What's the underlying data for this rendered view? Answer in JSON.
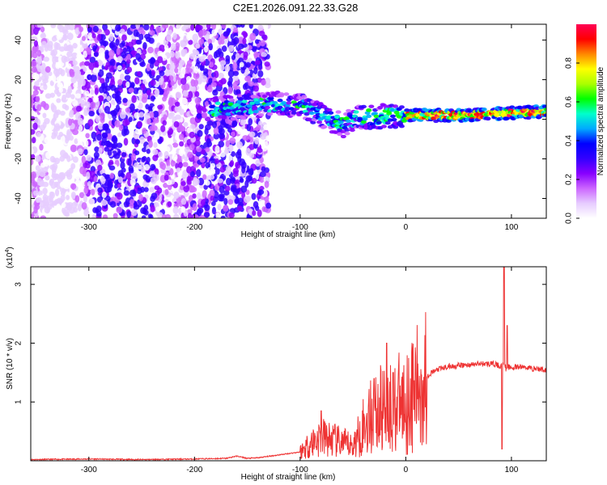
{
  "chart_data": [
    {
      "type": "heatmap",
      "title": "C2E1.2026.091.22.33.G28",
      "xlabel": "Height of straight line (km)",
      "ylabel": "Frequency (Hz)",
      "xlim": [
        -355,
        133
      ],
      "ylim": [
        -50,
        48
      ],
      "xticks": [
        -300,
        -200,
        -100,
        0,
        100
      ],
      "yticks": [
        -40,
        -20,
        0,
        20,
        40
      ],
      "colorbar": {
        "label": "Normalized spectral amplitude",
        "range": [
          0,
          1
        ],
        "ticks": [
          "0.0",
          "0.2",
          "0.4",
          "0.6",
          "0.8"
        ],
        "colors": [
          "#ffffff",
          "#e6ccff",
          "#cc66ff",
          "#8800ff",
          "#3300ff",
          "#0000ff",
          "#00aaff",
          "#00ffcc",
          "#00ff00",
          "#aaff00",
          "#ffff00",
          "#ff8800",
          "#ff0000",
          "#ff0055"
        ]
      },
      "ridge": [
        {
          "x": -180,
          "y": 5
        },
        {
          "x": -160,
          "y": 6
        },
        {
          "x": -140,
          "y": 7
        },
        {
          "x": -120,
          "y": 8
        },
        {
          "x": -100,
          "y": 7
        },
        {
          "x": -80,
          "y": 2
        },
        {
          "x": -60,
          "y": -3
        },
        {
          "x": -45,
          "y": 1
        },
        {
          "x": -30,
          "y": 1
        },
        {
          "x": -15,
          "y": 2
        },
        {
          "x": 0,
          "y": 2
        },
        {
          "x": 30,
          "y": 2
        },
        {
          "x": 60,
          "y": 2
        },
        {
          "x": 90,
          "y": 3
        },
        {
          "x": 133,
          "y": 4
        }
      ]
    },
    {
      "type": "line",
      "xlabel": "Height of straight line (km)",
      "ylabel": "SNR (10 * v/v)",
      "yexponent": "(x10",
      "yexponent_power": "4",
      "yexponent_close": ")",
      "xlim": [
        -355,
        133
      ],
      "ylim": [
        0,
        3.3
      ],
      "xticks": [
        -300,
        -200,
        -100,
        0,
        100
      ],
      "yticks": [
        1,
        2,
        3
      ],
      "series": [
        {
          "name": "SNR",
          "color": "#ee3333",
          "x": [
            -355,
            -300,
            -250,
            -200,
            -170,
            -160,
            -150,
            -140,
            -120,
            -100,
            -90,
            -80,
            -70,
            -60,
            -50,
            -40,
            -30,
            -20,
            -10,
            0,
            10,
            20,
            30,
            40,
            50,
            60,
            70,
            80,
            85,
            90,
            93,
            95,
            97,
            100,
            110,
            120,
            133
          ],
          "y": [
            0.02,
            0.03,
            0.02,
            0.03,
            0.04,
            0.08,
            0.04,
            0.05,
            0.1,
            0.15,
            0.3,
            0.4,
            0.35,
            0.3,
            0.25,
            0.6,
            0.8,
            0.9,
            0.95,
            1.0,
            1.2,
            1.45,
            1.55,
            1.6,
            1.62,
            1.63,
            1.65,
            1.65,
            1.64,
            1.6,
            1.7,
            1.55,
            1.6,
            1.58,
            1.6,
            1.57,
            1.55
          ]
        }
      ],
      "spikes": [
        {
          "x": -80,
          "y": 0.85
        },
        {
          "x": -30,
          "y": 1.4
        },
        {
          "x": -18,
          "y": 2.0
        },
        {
          "x": -12,
          "y": 1.5
        },
        {
          "x": 93,
          "y": 3.3
        },
        {
          "x": 96,
          "y": 2.3
        },
        {
          "x": 91,
          "y": 0.2
        }
      ]
    }
  ]
}
